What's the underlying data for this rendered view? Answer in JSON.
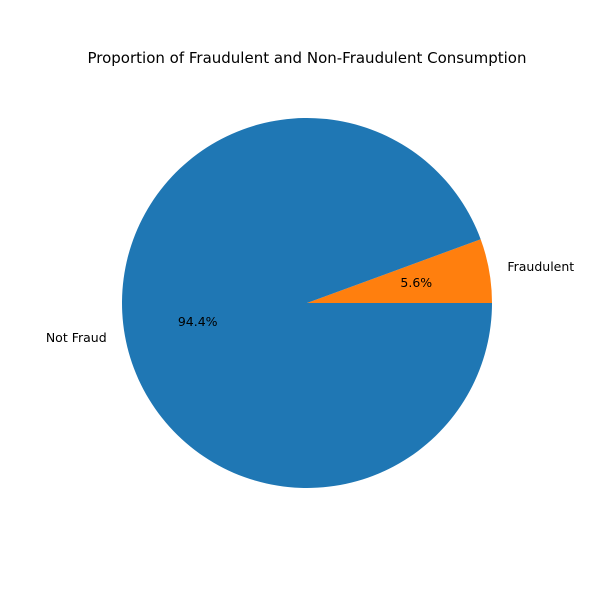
{
  "chart_data": {
    "type": "pie",
    "title": "Proportion of Fraudulent and Non-Fraudulent Consumption",
    "slices": [
      {
        "label": "Fraudulent",
        "value": 5.6,
        "pct_label": "5.6%",
        "color": "#ff7f0e"
      },
      {
        "label": "Not Fraud",
        "value": 94.4,
        "pct_label": "94.4%",
        "color": "#1f77b4"
      }
    ],
    "start_angle_deg": 0,
    "direction": "counterclockwise"
  }
}
